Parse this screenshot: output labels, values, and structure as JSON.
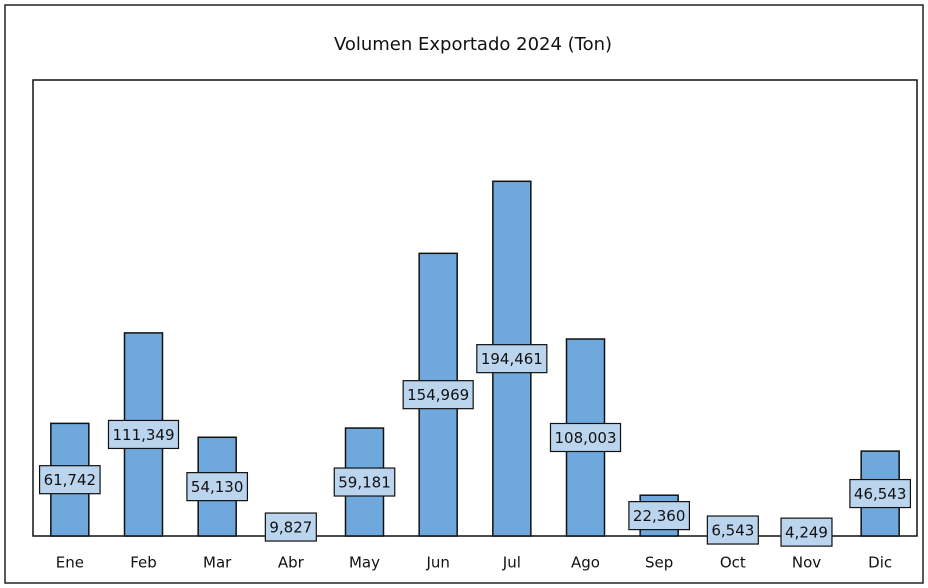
{
  "chart_data": {
    "type": "bar",
    "title": "Volumen Exportado 2024 (Ton)",
    "categories": [
      "Ene",
      "Feb",
      "Mar",
      "Abr",
      "May",
      "Jun",
      "Jul",
      "Ago",
      "Sep",
      "Oct",
      "Nov",
      "Dic"
    ],
    "values": [
      61742,
      111349,
      54130,
      9827,
      59181,
      154969,
      194461,
      108003,
      22360,
      6543,
      4249,
      46543
    ],
    "value_labels": [
      "61,742",
      "111,349",
      "54,130",
      "9,827",
      "59,181",
      "154,969",
      "194,461",
      "108,003",
      "22,360",
      "6,543",
      "4,249",
      "46,543"
    ],
    "color": "#6fa8dc",
    "ylim": [
      0,
      250000
    ]
  }
}
